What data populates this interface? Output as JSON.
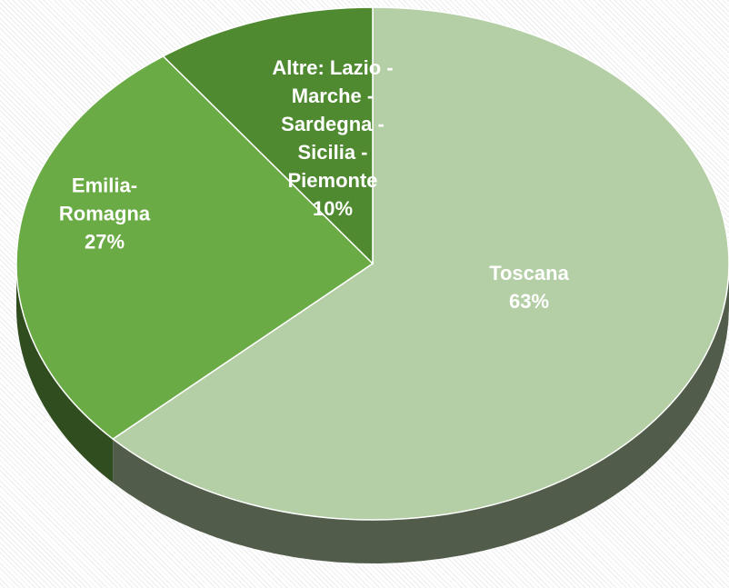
{
  "chart_data": {
    "type": "pie",
    "categories": [
      "Toscana",
      "Emilia-Romagna",
      "Altre: Lazio - Marche - Sardegna - Sicilia - Piemonte"
    ],
    "values": [
      63,
      27,
      10
    ],
    "value_labels": [
      "63%",
      "27%",
      "10%"
    ],
    "colors": [
      "#b4cea5",
      "#6aab45",
      "#4f8a31"
    ]
  }
}
